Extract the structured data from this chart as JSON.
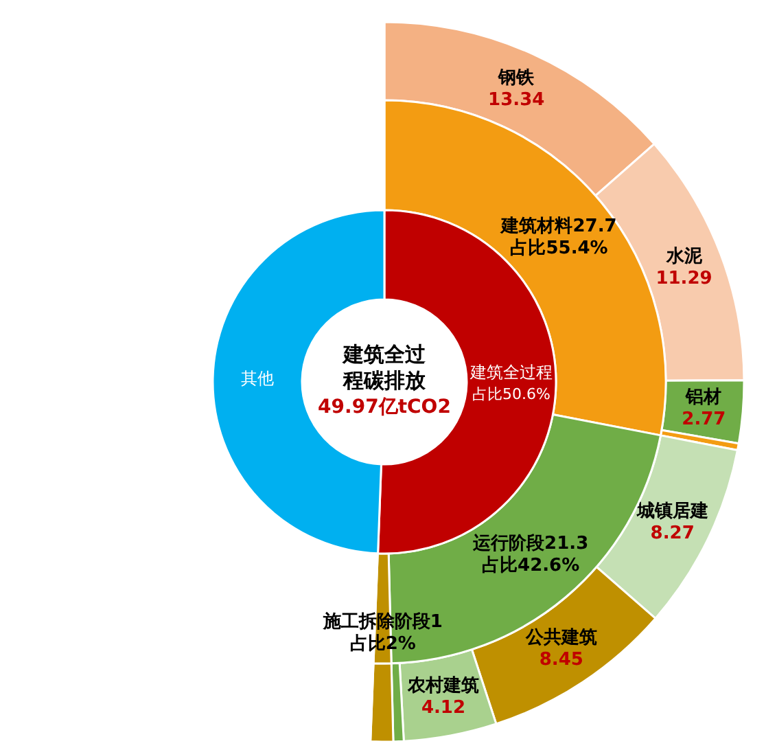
{
  "chart_data": [
    {
      "type": "donut",
      "title": "建筑全过程碳排放",
      "subtitle": "49.97亿tCO2",
      "legend": false,
      "categories": [
        "建筑全过程",
        "其他"
      ],
      "values": [
        50.6,
        49.4
      ],
      "colors": [
        "#c00000",
        "#00b0f0"
      ],
      "value_labels": [
        "占比50.6%",
        null
      ]
    },
    {
      "type": "donut",
      "legend": false,
      "categories": [
        "建筑材料27.7",
        "运行阶段21.3",
        "施工拆除阶段1",
        null
      ],
      "values": [
        27.7,
        21.3,
        1,
        48.78
      ],
      "colors": [
        "#f39c12",
        "#70ad47",
        "#bf9000",
        "#ffffff"
      ],
      "value_labels": [
        "占比55.4%",
        "占比42.6%",
        "占比2%",
        null
      ]
    },
    {
      "type": "donut",
      "legend": false,
      "categories": [
        "钢铁",
        "水泥",
        "铝材",
        null,
        "城镇居建",
        "公共建筑",
        "农村建筑",
        null,
        null,
        null
      ],
      "values": [
        13.34,
        11.29,
        2.77,
        0.3,
        8.27,
        8.45,
        4.12,
        0.46,
        1,
        48.78
      ],
      "colors": [
        "#f4b183",
        "#f8cbad",
        "#70ad47",
        "#f39c12",
        "#c5e0b4",
        "#bf9000",
        "#a9d18e",
        "#70ad47",
        "#bf9000",
        "#ffffff"
      ],
      "value_labels": [
        "13.34",
        "11.29",
        "2.77",
        null,
        "8.27",
        "8.45",
        "4.12",
        null,
        null,
        null
      ]
    }
  ]
}
